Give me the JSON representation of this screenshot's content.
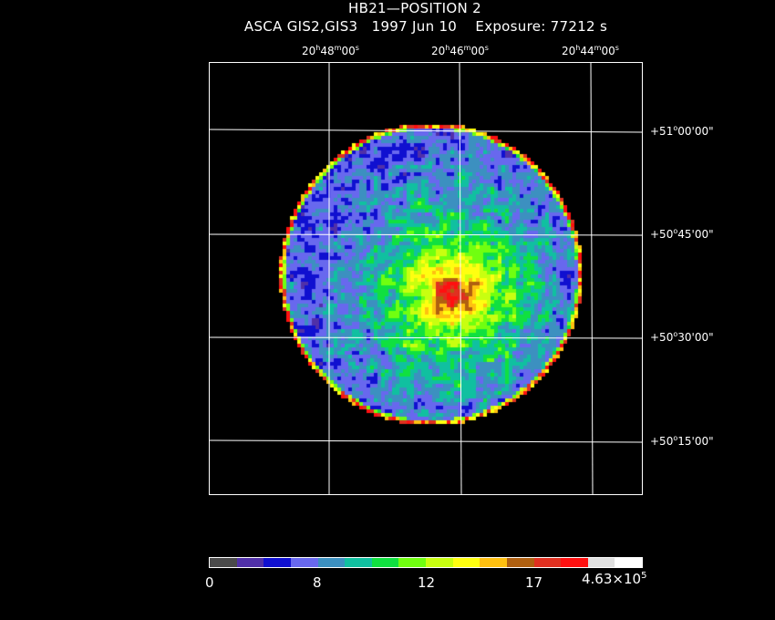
{
  "header": {
    "line1": "HB21—POSITION 2",
    "line2": "ASCA GIS2,GIS3   1997 Jun 10    Exposure: 77212 s"
  },
  "ra_labels": [
    {
      "h": "20",
      "m": "48",
      "s": "00"
    },
    {
      "h": "20",
      "m": "46",
      "s": "00"
    },
    {
      "h": "20",
      "m": "44",
      "s": "00"
    }
  ],
  "dec_labels": [
    {
      "d": "+51",
      "m": "00",
      "s": "00"
    },
    {
      "d": "+50",
      "m": "45",
      "s": "00"
    },
    {
      "d": "+50",
      "m": "30",
      "s": "00"
    },
    {
      "d": "+50",
      "m": "15",
      "s": "00"
    }
  ],
  "colorbar": {
    "colors": [
      "#4a4a4a",
      "#5030a8",
      "#1010d0",
      "#6868ee",
      "#3c90c0",
      "#10c0a0",
      "#10e040",
      "#70ff10",
      "#c8ff10",
      "#ffff10",
      "#ffc010",
      "#b06010",
      "#e03020",
      "#ff1010",
      "#e0e0e0",
      "#ffffff"
    ],
    "ticks": [
      "0",
      "8",
      "12",
      "17"
    ],
    "max_label": "4.63×10",
    "max_exp": "5"
  }
}
